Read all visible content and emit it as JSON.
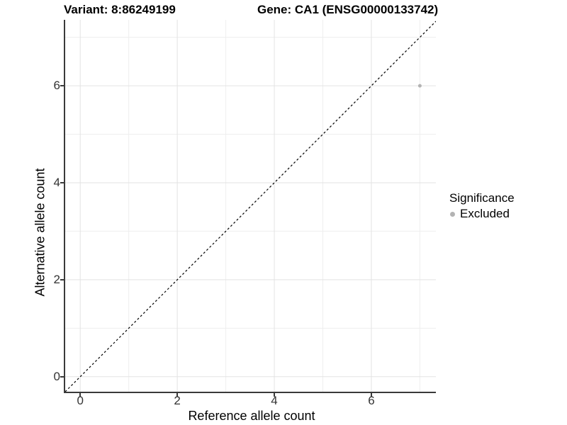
{
  "titles": {
    "variant": "Variant: 8:86249199",
    "gene": "Gene: CA1 (ENSG00000133742)"
  },
  "chart_data": {
    "type": "scatter",
    "title_left": "Variant: 8:86249199",
    "title_right": "Gene: CA1 (ENSG00000133742)",
    "xlabel": "Reference allele count",
    "ylabel": "Alternative allele count",
    "xlim": [
      -0.31,
      7.33
    ],
    "ylim": [
      -0.31,
      7.36
    ],
    "x_major_ticks": [
      0,
      2,
      4,
      6
    ],
    "y_major_ticks": [
      0,
      2,
      4,
      6
    ],
    "x_minor_gridlines": [
      1,
      3,
      5,
      7
    ],
    "y_minor_gridlines": [
      1,
      3,
      5,
      7
    ],
    "grid": true,
    "points": [
      {
        "x": 7,
        "y": 6,
        "significance": "Excluded"
      }
    ],
    "point_radius": 2.5,
    "reference_line": {
      "type": "identity",
      "style": "dashed",
      "color": "#000000",
      "dash": "3,3"
    },
    "legend_position": "right"
  },
  "legend": {
    "title": "Significance",
    "items": [
      {
        "label": "Excluded",
        "color": "#b3b3b3"
      }
    ]
  },
  "colors": {
    "background": "#ffffff",
    "grid_major": "#e3e3e3",
    "grid_minor": "#eeeeee",
    "axis_line": "#3a3a3a",
    "tick_text": "#333333",
    "title_text": "#000000",
    "excluded_point": "#b3b3b3"
  }
}
